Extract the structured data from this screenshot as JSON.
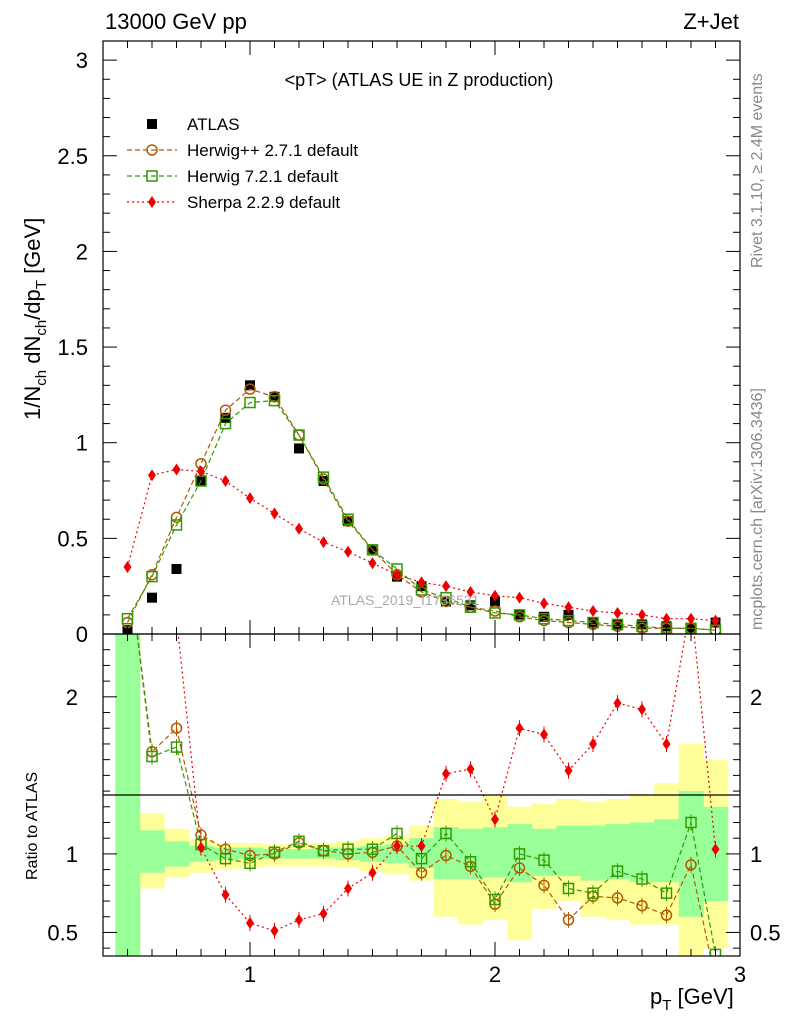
{
  "header": {
    "left": "13000 GeV pp",
    "right": "Z+Jet",
    "plot_title": "<pT> (ATLAS UE in Z production)"
  },
  "side_labels": {
    "rivet": "Rivet 3.1.10, ≥ 2.4M events",
    "mcplots": "mcplots.cern.ch [arXiv:1306.3436]"
  },
  "watermark": "ATLAS_2019_I1736531",
  "axes": {
    "main_ylabel": "1/N_ch dN_ch/dp_T [GeV]",
    "ratio_ylabel": "Ratio to ATLAS",
    "xlabel": "p_T [GeV]",
    "x_ticks": [
      "1",
      "2",
      "3"
    ],
    "main_y_ticks": [
      "0",
      "0.5",
      "1",
      "1.5",
      "2",
      "2.5",
      "3"
    ],
    "ratio_y_ticks": [
      "0.5",
      "1",
      "2"
    ]
  },
  "legend": [
    {
      "label": "ATLAS",
      "color": "#000000",
      "marker": "square-filled"
    },
    {
      "label": "Herwig++ 2.7.1 default",
      "color": "#b35900",
      "marker": "circle-open"
    },
    {
      "label": "Herwig 7.2.1 default",
      "color": "#339900",
      "marker": "square-open"
    },
    {
      "label": "Sherpa 2.2.9 default",
      "color": "#ee0000",
      "marker": "diamond-filled"
    }
  ],
  "chart_data": {
    "type": "line",
    "title": "<pT> (ATLAS UE in Z production)",
    "xlabel": "p_T [GeV]",
    "ylabel": "1/N_ch dN_ch/dp_T [GeV]",
    "xlim": [
      0.4,
      3.0
    ],
    "ylim": [
      0,
      3.1
    ],
    "ratio_ylim": [
      0.35,
      2.4
    ],
    "ratio_ylabel": "Ratio to ATLAS",
    "x": [
      0.5,
      0.6,
      0.7,
      0.8,
      0.9,
      1.0,
      1.1,
      1.2,
      1.3,
      1.4,
      1.5,
      1.6,
      1.7,
      1.8,
      1.9,
      2.0,
      2.1,
      2.2,
      2.3,
      2.4,
      2.5,
      2.6,
      2.7,
      2.8,
      2.9
    ],
    "series": [
      {
        "name": "ATLAS",
        "color": "#000000",
        "marker": "square-filled",
        "values": [
          0.02,
          0.19,
          0.34,
          0.8,
          1.13,
          1.3,
          1.24,
          0.97,
          0.8,
          0.59,
          0.44,
          0.3,
          0.25,
          0.17,
          0.15,
          0.17,
          0.1,
          0.09,
          0.1,
          0.06,
          0.05,
          0.05,
          0.04,
          0.03,
          0.06
        ]
      },
      {
        "name": "Herwig++ 2.7.1 default",
        "color": "#b35900",
        "marker": "circle-open",
        "values": [
          0.06,
          0.31,
          0.61,
          0.89,
          1.17,
          1.28,
          1.24,
          1.04,
          0.81,
          0.59,
          0.44,
          0.31,
          0.22,
          0.17,
          0.14,
          0.12,
          0.09,
          0.07,
          0.06,
          0.05,
          0.04,
          0.03,
          0.03,
          0.03,
          0.02
        ],
        "ratio": [
          2.9,
          1.65,
          1.8,
          1.12,
          1.03,
          0.99,
          1.0,
          1.07,
          1.02,
          1.0,
          1.01,
          1.05,
          0.88,
          0.99,
          0.92,
          0.68,
          0.91,
          0.8,
          0.58,
          0.73,
          0.72,
          0.67,
          0.61,
          0.93,
          0.2
        ]
      },
      {
        "name": "Herwig 7.2.1 default",
        "color": "#339900",
        "marker": "square-open",
        "values": [
          0.08,
          0.3,
          0.57,
          0.8,
          1.1,
          1.21,
          1.22,
          1.04,
          0.82,
          0.6,
          0.44,
          0.34,
          0.23,
          0.19,
          0.14,
          0.11,
          0.1,
          0.08,
          0.07,
          0.06,
          0.05,
          0.04,
          0.03,
          0.03,
          0.02
        ],
        "ratio": [
          2.9,
          1.62,
          1.68,
          1.06,
          0.97,
          0.94,
          1.01,
          1.08,
          1.02,
          1.03,
          1.03,
          1.13,
          0.97,
          1.13,
          0.95,
          0.71,
          1.0,
          0.96,
          0.78,
          0.75,
          0.89,
          0.84,
          0.75,
          1.2,
          0.36
        ]
      },
      {
        "name": "Sherpa 2.2.9 default",
        "color": "#ee0000",
        "marker": "diamond-filled",
        "values": [
          0.35,
          0.83,
          0.86,
          0.85,
          0.8,
          0.71,
          0.63,
          0.55,
          0.48,
          0.43,
          0.37,
          0.31,
          0.27,
          0.25,
          0.22,
          0.2,
          0.19,
          0.16,
          0.14,
          0.12,
          0.11,
          0.1,
          0.08,
          0.08,
          0.07
        ],
        "ratio": [
          4.0,
          4.0,
          2.5,
          1.04,
          0.74,
          0.56,
          0.51,
          0.58,
          0.62,
          0.78,
          0.88,
          1.05,
          1.05,
          1.51,
          1.54,
          1.22,
          1.8,
          1.76,
          1.53,
          1.7,
          1.96,
          1.92,
          1.7,
          2.6,
          1.03
        ]
      }
    ],
    "bands": {
      "x_edges": [
        0.45,
        0.55,
        0.65,
        0.75,
        0.85,
        0.95,
        1.05,
        1.15,
        1.25,
        1.35,
        1.45,
        1.55,
        1.65,
        1.75,
        1.85,
        1.95,
        2.05,
        2.15,
        2.25,
        2.35,
        2.45,
        2.55,
        2.65,
        2.75,
        2.85,
        2.95
      ],
      "yellow": [
        [
          0.3,
          3.0
        ],
        [
          0.78,
          1.26
        ],
        [
          0.85,
          1.16
        ],
        [
          0.88,
          1.09
        ],
        [
          0.9,
          1.07
        ],
        [
          0.91,
          1.07
        ],
        [
          0.92,
          1.06
        ],
        [
          0.92,
          1.06
        ],
        [
          0.92,
          1.07
        ],
        [
          0.91,
          1.08
        ],
        [
          0.89,
          1.1
        ],
        [
          0.87,
          1.12
        ],
        [
          0.83,
          1.18
        ],
        [
          0.6,
          1.35
        ],
        [
          0.55,
          1.33
        ],
        [
          0.58,
          1.37
        ],
        [
          0.45,
          1.3
        ],
        [
          0.65,
          1.32
        ],
        [
          0.7,
          1.35
        ],
        [
          0.6,
          1.33
        ],
        [
          0.58,
          1.35
        ],
        [
          0.55,
          1.38
        ],
        [
          0.55,
          1.45
        ],
        [
          0.3,
          1.7
        ],
        [
          0.4,
          1.6
        ]
      ],
      "green": [
        [
          0.3,
          3.0
        ],
        [
          0.88,
          1.15
        ],
        [
          0.92,
          1.08
        ],
        [
          0.95,
          1.05
        ],
        [
          0.96,
          1.04
        ],
        [
          0.97,
          1.04
        ],
        [
          0.97,
          1.03
        ],
        [
          0.97,
          1.03
        ],
        [
          0.97,
          1.04
        ],
        [
          0.96,
          1.04
        ],
        [
          0.95,
          1.05
        ],
        [
          0.94,
          1.06
        ],
        [
          0.91,
          1.1
        ],
        [
          0.84,
          1.17
        ],
        [
          0.84,
          1.16
        ],
        [
          0.85,
          1.17
        ],
        [
          0.82,
          1.19
        ],
        [
          0.86,
          1.16
        ],
        [
          0.86,
          1.18
        ],
        [
          0.83,
          1.18
        ],
        [
          0.84,
          1.19
        ],
        [
          0.82,
          1.2
        ],
        [
          0.82,
          1.22
        ],
        [
          0.6,
          1.4
        ],
        [
          0.7,
          1.3
        ]
      ]
    }
  }
}
